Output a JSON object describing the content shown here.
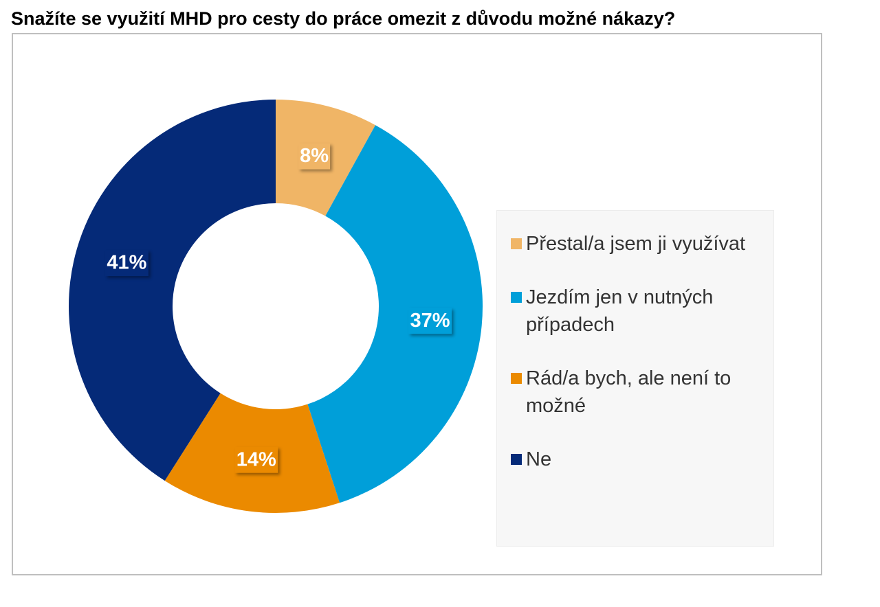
{
  "title": "Snažíte se využití MHD pro cesty do práce omezit z důvodu možné nákazy?",
  "chart_data": {
    "type": "pie",
    "variant": "donut",
    "title": "Snažíte se využití MHD pro cesty do práce omezit z důvodu možné nákazy?",
    "legend_position": "right",
    "categories": [
      "Přestal/a jsem ji využívat",
      "Jezdím jen v nutných případech",
      "Rád/a bych, ale není to možné",
      "Ne"
    ],
    "values": [
      8,
      37,
      14,
      41
    ],
    "data_labels": [
      "8%",
      "37%",
      "14%",
      "41%"
    ],
    "colors": [
      "#F0B566",
      "#009FD9",
      "#EB8A00",
      "#052A78"
    ]
  }
}
